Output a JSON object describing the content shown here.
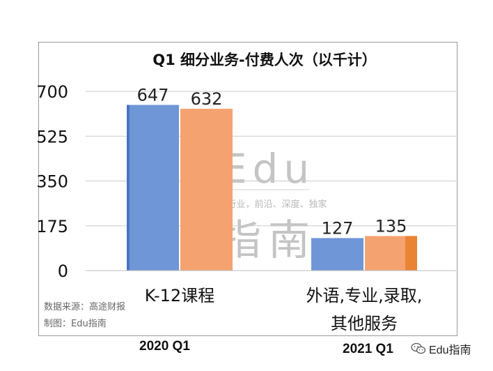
{
  "chart_data": {
    "type": "bar",
    "title": "Q1 细分业务-付费人次（以千计）",
    "categories": [
      "K-12课程",
      "外语,专业,录取,\n其他服务"
    ],
    "series": [
      {
        "name": "2020 Q1",
        "values": [
          647,
          127
        ],
        "color": "#6f96d6"
      },
      {
        "name": "2021 Q1",
        "values": [
          632,
          135
        ],
        "color": "#f4a370"
      }
    ],
    "ylim": [
      0,
      700
    ],
    "yticks": [
      0,
      175,
      350,
      525,
      700
    ],
    "grid": true,
    "data_labels": true
  },
  "watermark": {
    "line1": "Edu",
    "tagline": "教育行业，前沿、深度、独家",
    "line2": "指南"
  },
  "source_note": {
    "source": "数据来源：高途财报",
    "maker": "制图：Edu指南"
  },
  "logo": {
    "icon": "wechat-icon",
    "text": "Edu指南"
  }
}
